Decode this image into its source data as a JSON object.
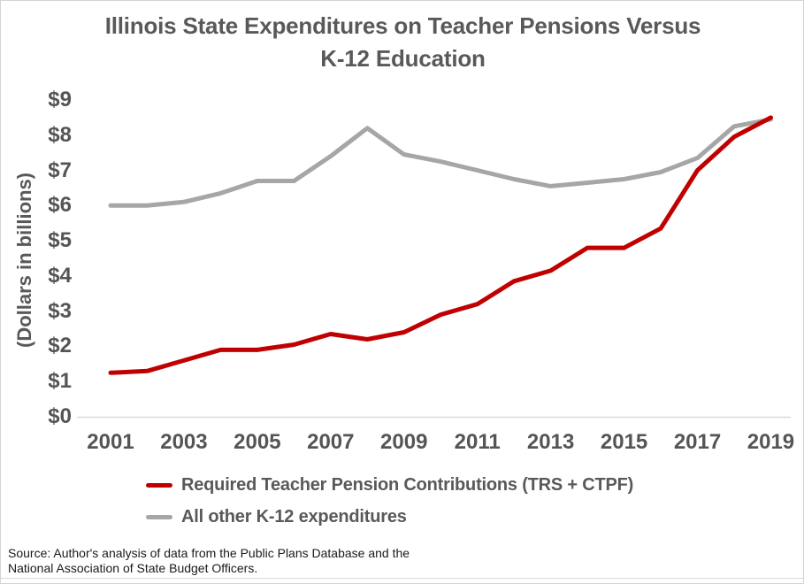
{
  "title": {
    "line1": "Illinois State Expenditures on Teacher Pensions Versus",
    "line2": "K-12 Education"
  },
  "y_axis": {
    "title": "(Dollars in billions)",
    "tick_labels": [
      "$9",
      "$8",
      "$7",
      "$6",
      "$5",
      "$4",
      "$3",
      "$2",
      "$1",
      "$0"
    ],
    "tick_values": [
      9,
      8,
      7,
      6,
      5,
      4,
      3,
      2,
      1,
      0
    ]
  },
  "x_axis": {
    "tick_labels": [
      "2001",
      "2003",
      "2005",
      "2007",
      "2009",
      "2011",
      "2013",
      "2015",
      "2017",
      "2019"
    ]
  },
  "legend": {
    "items": [
      {
        "label": "Required Teacher Pension Contributions (TRS + CTPF)",
        "color": "#C00000"
      },
      {
        "label": "All other K-12 expenditures",
        "color": "#A6A6A6"
      }
    ]
  },
  "source": {
    "line1": "Source: Author's analysis of data from the Public Plans Database and the",
    "line2": "National Association of State Budget Officers."
  },
  "colors": {
    "pension_line": "#C00000",
    "k12_line": "#A6A6A6",
    "text": "#595959",
    "axis_line": "#D9D9D9"
  },
  "chart_data": {
    "type": "line",
    "title": "Illinois State Expenditures on Teacher Pensions Versus K-12 Education",
    "ylabel": "(Dollars in billions)",
    "ylim": [
      0,
      9
    ],
    "grid": false,
    "legend_position": "bottom-left",
    "x": [
      2001,
      2002,
      2003,
      2004,
      2005,
      2006,
      2007,
      2008,
      2009,
      2010,
      2011,
      2012,
      2013,
      2014,
      2015,
      2016,
      2017,
      2018,
      2019
    ],
    "series": [
      {
        "name": "Required Teacher Pension Contributions (TRS + CTPF)",
        "color": "#C00000",
        "values": [
          1.25,
          1.3,
          1.6,
          1.9,
          1.9,
          2.05,
          2.35,
          2.2,
          2.4,
          2.9,
          3.2,
          3.85,
          4.15,
          4.8,
          4.8,
          5.35,
          7.0,
          7.95,
          8.5
        ]
      },
      {
        "name": "All other K-12 expenditures",
        "color": "#A6A6A6",
        "values": [
          6.0,
          6.0,
          6.1,
          6.35,
          6.7,
          6.7,
          7.4,
          8.2,
          7.45,
          7.25,
          7.0,
          6.75,
          6.55,
          6.65,
          6.75,
          6.95,
          7.35,
          8.25,
          8.45
        ]
      }
    ]
  }
}
